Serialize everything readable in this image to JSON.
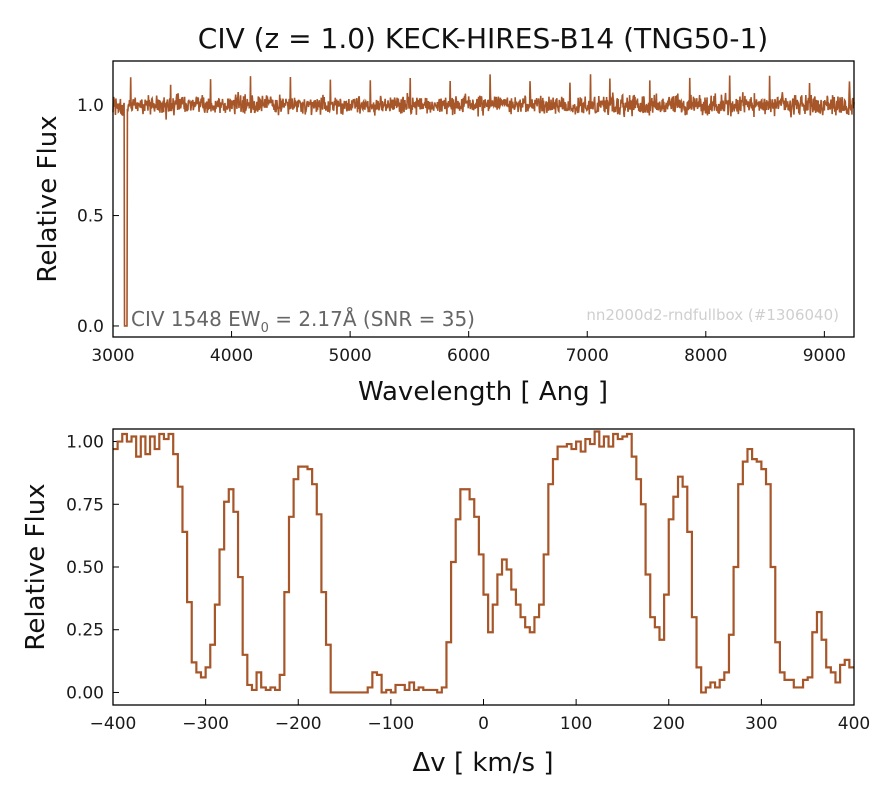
{
  "figure": {
    "title": "CIV (z = 1.0) KECK-HIRES-B14 (TNG50-1)",
    "annotation": "CIV 1548 EW",
    "annotation_sub": "0",
    "annotation_tail": " = 2.17Å (SNR = 35)",
    "watermark": "nn2000d2-rndfullbox (#1306040)",
    "line_color": "#a65628"
  },
  "chart_data": [
    {
      "type": "line",
      "style": "step",
      "xlabel": "Wavelength [ Ang ]",
      "ylabel": "Relative Flux",
      "xlim": [
        3000,
        9250
      ],
      "ylim": [
        -0.05,
        1.2
      ],
      "xticks": [
        3000,
        4000,
        5000,
        6000,
        7000,
        8000,
        9000
      ],
      "xtick_labels": [
        "3000",
        "4000",
        "5000",
        "6000",
        "7000",
        "8000",
        "9000"
      ],
      "yticks": [
        0.0,
        0.5,
        1.0
      ],
      "ytick_labels": [
        "0.0",
        "0.5",
        "1.0"
      ],
      "continuum": {
        "x_range": [
          3000,
          9250
        ],
        "mean": 1.0,
        "noise_range": [
          0.93,
          1.07
        ],
        "max_spike": 1.14
      },
      "absorption": {
        "x_start": 3095,
        "x_end": 3120,
        "min": 0.0
      }
    },
    {
      "type": "line",
      "style": "step",
      "xlabel": "Δv [ km/s ]",
      "ylabel": "Relative Flux",
      "xlim": [
        -400,
        400
      ],
      "ylim": [
        -0.05,
        1.05
      ],
      "xticks": [
        -400,
        -300,
        -200,
        -100,
        0,
        100,
        200,
        300,
        400
      ],
      "xtick_labels": [
        "−400",
        "−300",
        "−200",
        "−100",
        "0",
        "100",
        "200",
        "300",
        "400"
      ],
      "yticks": [
        0.0,
        0.25,
        0.5,
        0.75,
        1.0
      ],
      "ytick_labels": [
        "0.00",
        "0.25",
        "0.50",
        "0.75",
        "1.00"
      ],
      "x": [
        -400,
        -395,
        -390,
        -385,
        -380,
        -375,
        -370,
        -365,
        -360,
        -355,
        -350,
        -345,
        -340,
        -335,
        -330,
        -325,
        -320,
        -315,
        -310,
        -305,
        -300,
        -295,
        -290,
        -285,
        -280,
        -275,
        -270,
        -265,
        -260,
        -255,
        -250,
        -245,
        -240,
        -235,
        -230,
        -225,
        -220,
        -215,
        -210,
        -205,
        -200,
        -195,
        -190,
        -185,
        -180,
        -175,
        -170,
        -165,
        -160,
        -155,
        -150,
        -145,
        -140,
        -135,
        -130,
        -125,
        -120,
        -115,
        -110,
        -105,
        -100,
        -95,
        -90,
        -85,
        -80,
        -75,
        -70,
        -65,
        -60,
        -55,
        -50,
        -45,
        -40,
        -35,
        -30,
        -25,
        -20,
        -15,
        -10,
        -5,
        0,
        5,
        10,
        15,
        20,
        25,
        30,
        35,
        40,
        45,
        50,
        55,
        60,
        65,
        70,
        75,
        80,
        85,
        90,
        95,
        100,
        105,
        110,
        115,
        120,
        125,
        130,
        135,
        140,
        145,
        150,
        155,
        160,
        165,
        170,
        175,
        180,
        185,
        190,
        195,
        200,
        205,
        210,
        215,
        220,
        225,
        230,
        235,
        240,
        245,
        250,
        255,
        260,
        265,
        270,
        275,
        280,
        285,
        290,
        295,
        300,
        305,
        310,
        315,
        320,
        325,
        330,
        335,
        340,
        345,
        350,
        355,
        360,
        365,
        370,
        375,
        380,
        385,
        390,
        395
      ],
      "y": [
        0.97,
        1.0,
        1.03,
        1.0,
        1.02,
        0.94,
        1.02,
        0.95,
        1.02,
        0.97,
        1.03,
        1.01,
        1.03,
        0.95,
        0.82,
        0.64,
        0.36,
        0.12,
        0.08,
        0.06,
        0.1,
        0.19,
        0.35,
        0.57,
        0.76,
        0.81,
        0.72,
        0.46,
        0.15,
        0.03,
        0.01,
        0.08,
        0.02,
        0.01,
        0.02,
        0.01,
        0.07,
        0.4,
        0.7,
        0.85,
        0.9,
        0.9,
        0.89,
        0.83,
        0.71,
        0.4,
        0.19,
        0.0,
        0.0,
        0.0,
        0.0,
        0.0,
        0.0,
        0.0,
        0.0,
        0.02,
        0.08,
        0.07,
        0.0,
        0.01,
        0.0,
        0.03,
        0.03,
        0.01,
        0.04,
        0.01,
        0.02,
        0.01,
        0.01,
        0.01,
        0.0,
        0.02,
        0.2,
        0.52,
        0.69,
        0.81,
        0.81,
        0.77,
        0.7,
        0.55,
        0.39,
        0.24,
        0.35,
        0.47,
        0.53,
        0.49,
        0.41,
        0.35,
        0.3,
        0.26,
        0.24,
        0.3,
        0.35,
        0.55,
        0.83,
        0.93,
        0.98,
        0.98,
        0.99,
        0.97,
        1.0,
        0.96,
        1.01,
        0.99,
        1.04,
        0.98,
        1.02,
        0.98,
        1.03,
        1.01,
        1.02,
        1.03,
        0.94,
        0.85,
        0.75,
        0.47,
        0.3,
        0.26,
        0.21,
        0.39,
        0.69,
        0.78,
        0.86,
        0.82,
        0.64,
        0.3,
        0.1,
        0.0,
        0.02,
        0.04,
        0.02,
        0.05,
        0.08,
        0.23,
        0.5,
        0.83,
        0.92,
        0.97,
        0.93,
        0.92,
        0.89,
        0.83,
        0.5,
        0.2,
        0.08,
        0.05,
        0.05,
        0.02,
        0.02,
        0.05,
        0.06,
        0.24,
        0.32,
        0.21,
        0.1,
        0.08,
        0.04,
        0.11,
        0.13,
        0.1
      ]
    }
  ]
}
